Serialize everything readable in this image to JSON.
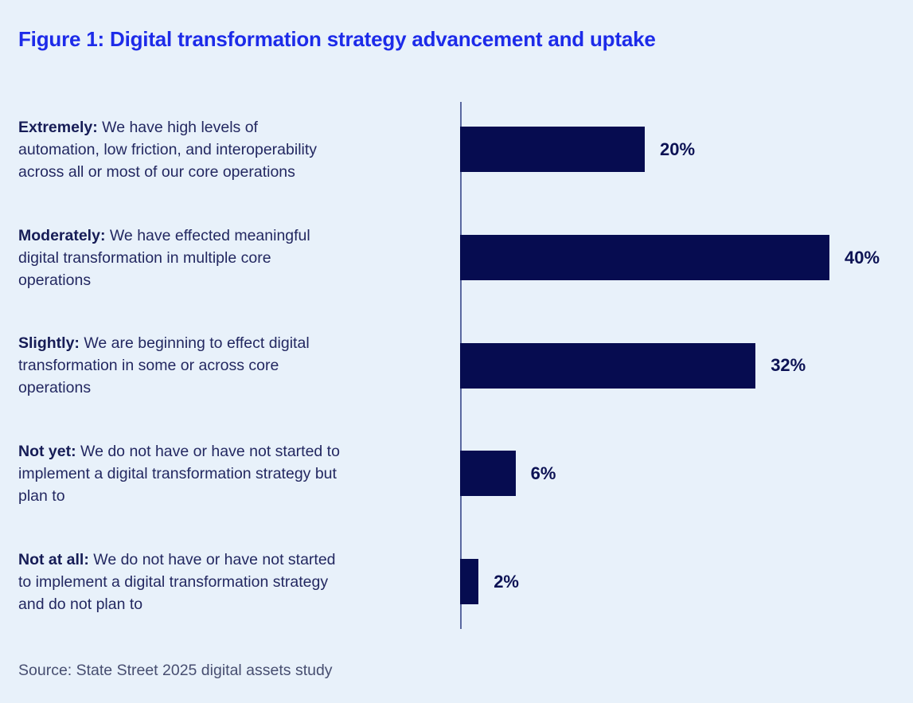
{
  "figure": {
    "title": "Figure 1: Digital transformation strategy advancement and uptake",
    "source": "Source: State Street 2025 digital assets study"
  },
  "chart_data": {
    "type": "bar",
    "orientation": "horizontal",
    "title": "Figure 1: Digital transformation strategy advancement and uptake",
    "categories": [
      "Extremely: We have high levels of automation, low friction, and interoperability across all or most of our core operations",
      "Moderately: We have effected meaningful digital transformation in multiple core operations",
      "Slightly: We are beginning to effect digital transformation in some or across core operations",
      "Not yet: We do not have or have not started to implement a digital transformation strategy but plan to",
      "Not at all: We do not have or have not started to implement a digital transformation strategy and do not plan to"
    ],
    "values": [
      20,
      40,
      32,
      6,
      2
    ],
    "value_labels": [
      "20%",
      "40%",
      "32%",
      "6%",
      "2%"
    ],
    "xlim": [
      0,
      49
    ],
    "grid": false,
    "legend": false,
    "bar_color": "#060c50",
    "axis_color": "#5a68a0",
    "background_color": "#e8f1fa",
    "title_color": "#1d2be9",
    "source": "Source: State Street 2025 digital assets study"
  },
  "rows": [
    {
      "lead": "Extremely:",
      "rest": "We have high levels of automation, low friction, and interoperability across all or most of our core operations",
      "value": 20,
      "value_label": "20%"
    },
    {
      "lead": "Moderately:",
      "rest": "We have effected meaningful digital transformation in multiple core operations",
      "value": 40,
      "value_label": "40%"
    },
    {
      "lead": "Slightly:",
      "rest": "We are beginning to effect digital transformation in some or across core operations",
      "value": 32,
      "value_label": "32%"
    },
    {
      "lead": "Not yet:",
      "rest": "We do not have or have not started to implement a digital transformation strategy but plan to",
      "value": 6,
      "value_label": "6%"
    },
    {
      "lead": "Not at all:",
      "rest": "We do not have or have not started to implement a digital transformation strategy and do not plan to",
      "value": 2,
      "value_label": "2%"
    }
  ]
}
